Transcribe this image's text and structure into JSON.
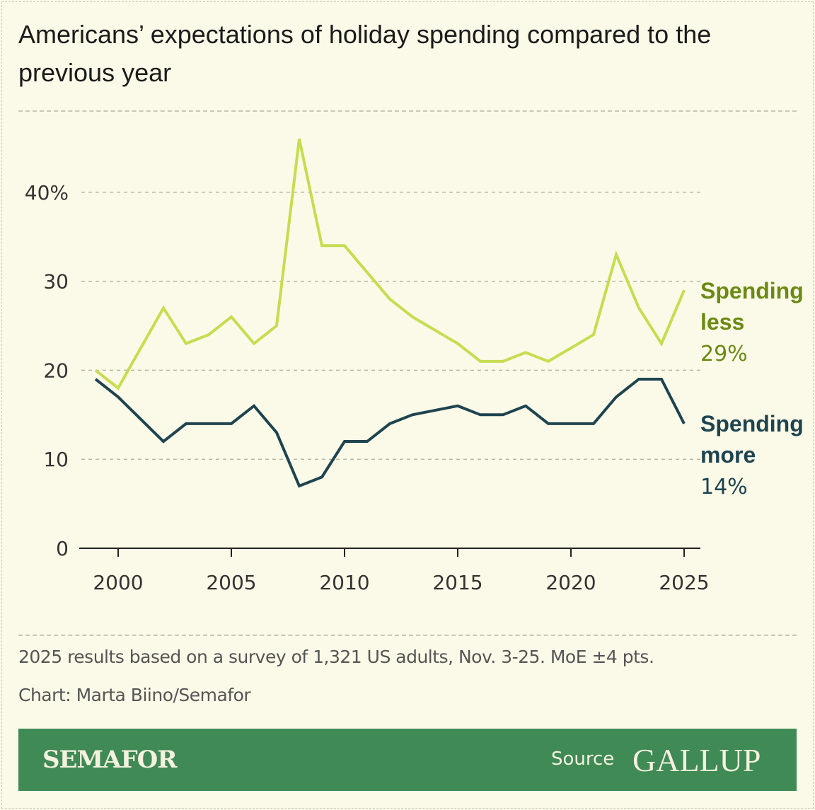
{
  "title": "Americans’ expectations of holiday spending compared to the previous year",
  "chart_data": {
    "type": "line",
    "title": "Americans’ expectations of holiday spending compared to the previous year",
    "xlabel": "",
    "ylabel": "",
    "xlim": [
      1998.5,
      2025.7
    ],
    "ylim": [
      0,
      48
    ],
    "x_ticks": [
      2000,
      2005,
      2010,
      2015,
      2020,
      2025
    ],
    "y_ticks": [
      {
        "v": 0,
        "label": "0"
      },
      {
        "v": 10,
        "label": "10"
      },
      {
        "v": 20,
        "label": "20"
      },
      {
        "v": 30,
        "label": "30"
      },
      {
        "v": 40,
        "label": "40%"
      }
    ],
    "grid": true,
    "series": [
      {
        "name": "Spending less",
        "end_label": "29%",
        "color": "#c5dd4f",
        "label_color": "#6b8a13",
        "x": [
          1999,
          2000,
          2002,
          2003,
          2004,
          2005,
          2006,
          2007,
          2008,
          2009,
          2010,
          2012,
          2013,
          2015,
          2016,
          2017,
          2018,
          2019,
          2021,
          2022,
          2023,
          2024,
          2025
        ],
        "y": [
          20,
          18,
          27,
          23,
          24,
          26,
          23,
          25,
          46,
          34,
          34,
          28,
          26,
          23,
          21,
          21,
          22,
          21,
          24,
          33,
          27,
          23,
          29
        ]
      },
      {
        "name": "Spending more",
        "end_label": "14%",
        "color": "#1e4450",
        "label_color": "#1e4450",
        "x": [
          1999,
          2000,
          2002,
          2003,
          2004,
          2005,
          2006,
          2007,
          2008,
          2009,
          2010,
          2011,
          2012,
          2013,
          2015,
          2016,
          2017,
          2018,
          2019,
          2020,
          2021,
          2022,
          2023,
          2024,
          2025
        ],
        "y": [
          19,
          17,
          12,
          14,
          14,
          14,
          16,
          13,
          7,
          8,
          12,
          12,
          14,
          15,
          16,
          15,
          15,
          16,
          14,
          14,
          14,
          17,
          19,
          19,
          14
        ]
      }
    ]
  },
  "note": "2025 results based on a survey of 1,321 US adults, Nov. 3-25. MoE ±4 pts.",
  "credit": "Chart: Marta Biino/Semafor",
  "footer": {
    "brand": "SEMAFOR",
    "source_label": "Source",
    "source": "GALLUP",
    "bg": "#3f8a55"
  }
}
